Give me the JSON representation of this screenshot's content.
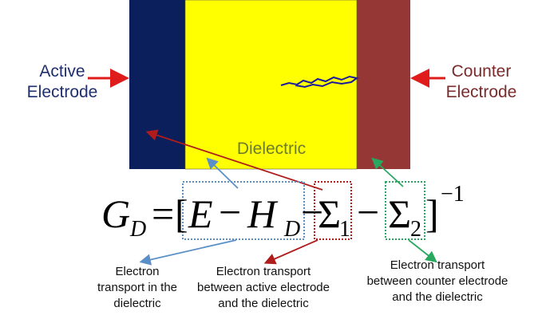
{
  "labels": {
    "active_electrode": [
      "Active",
      "Electrode"
    ],
    "counter_electrode": [
      "Counter",
      "Electrode"
    ],
    "dielectric": "Dielectric"
  },
  "equation": {
    "lhs": "G",
    "lhs_sub": "D",
    "equals": "=",
    "open": "[",
    "e": "E",
    "minus1": "−",
    "h": "H",
    "h_sub": "D",
    "minus2": "−",
    "sigma1": "Σ",
    "sigma1_sub": "1",
    "minus3": "−",
    "sigma2": "Σ",
    "sigma2_sub": "2",
    "close": "]",
    "power": "−1"
  },
  "annotations": [
    [
      "Electron",
      "transport in the",
      "dielectric"
    ],
    [
      "Electron transport",
      "between active electrode",
      "and the dielectric"
    ],
    [
      "Electron transport",
      "between counter electrode",
      "and the dielectric"
    ]
  ]
}
